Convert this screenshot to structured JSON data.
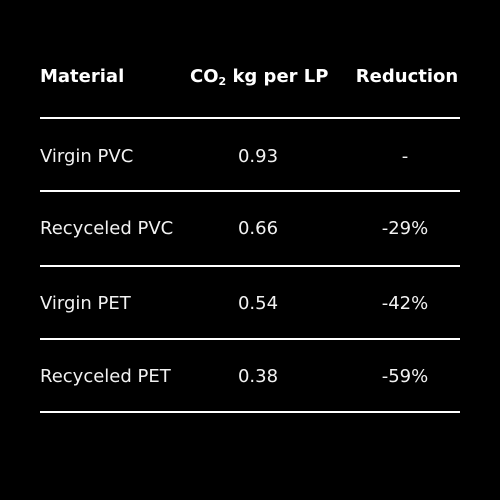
{
  "chart_data": {
    "type": "table",
    "columns": {
      "material": "Material",
      "co2_prefix": "CO",
      "co2_sub": "2",
      "co2_suffix": " kg per LP",
      "reduction": "Reduction"
    },
    "rows": [
      {
        "material": "Virgin PVC",
        "co2": "0.93",
        "reduction": "-"
      },
      {
        "material": "Recyceled PVC",
        "co2": "0.66",
        "reduction": "-29%"
      },
      {
        "material": "Virgin PET",
        "co2": "0.54",
        "reduction": "-42%"
      },
      {
        "material": "Recyceled PET",
        "co2": "0.38",
        "reduction": "-59%"
      }
    ]
  },
  "colors": {
    "background": "#000000",
    "text": "#ffffff",
    "rule": "#ffffff"
  }
}
